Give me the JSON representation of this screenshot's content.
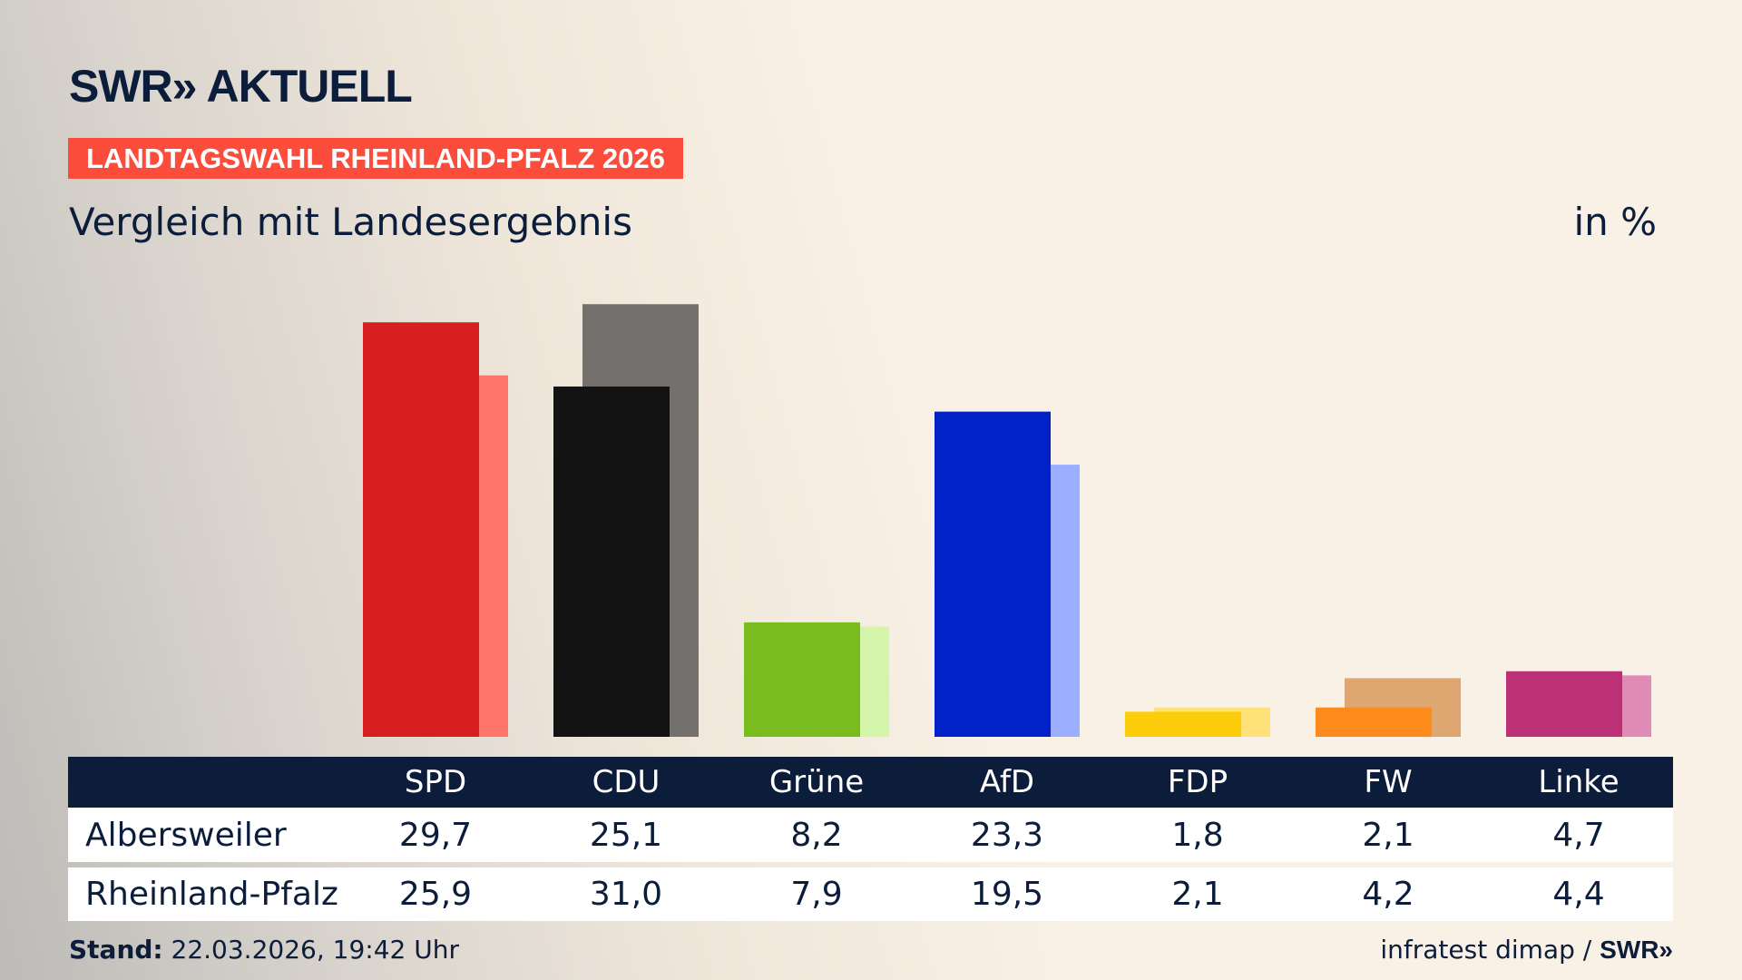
{
  "header": {
    "logo": "SWR» AKTUELL",
    "banner": "LANDTAGSWAHL RHEINLAND-PFALZ 2026",
    "subtitle": "Vergleich mit Landesergebnis",
    "unit": "in %"
  },
  "chart_data": {
    "type": "bar",
    "categories": [
      "SPD",
      "CDU",
      "Grüne",
      "AfD",
      "FDP",
      "FW",
      "Linke"
    ],
    "series": [
      {
        "name": "Albersweiler",
        "values": [
          29.7,
          25.1,
          8.2,
          23.3,
          1.8,
          2.1,
          4.7
        ],
        "colors": [
          "#d81f1f",
          "#131313",
          "#78bc1e",
          "#0221c8",
          "#fdcd0b",
          "#fd8b1b",
          "#bc3076"
        ]
      },
      {
        "name": "Rheinland-Pfalz",
        "values": [
          25.9,
          31.0,
          7.9,
          19.5,
          2.1,
          4.2,
          4.4
        ],
        "colors": [
          "#ff746b",
          "#74706e",
          "#d5f5aa",
          "#9caeff",
          "#ffe27a",
          "#dea772",
          "#e08ab6"
        ]
      }
    ],
    "ylim": [
      0,
      31.0
    ]
  },
  "table": {
    "headers": [
      "SPD",
      "CDU",
      "Grüne",
      "AfD",
      "FDP",
      "FW",
      "Linke"
    ],
    "rows": [
      {
        "label": "Albersweiler",
        "values": [
          "29,7",
          "25,1",
          "8,2",
          "23,3",
          "1,8",
          "2,1",
          "4,7"
        ]
      },
      {
        "label": "Rheinland-Pfalz",
        "values": [
          "25,9",
          "31,0",
          "7,9",
          "19,5",
          "2,1",
          "4,2",
          "4,4"
        ]
      }
    ]
  },
  "footer": {
    "stand_label": "Stand:",
    "stand_value": " 22.03.2026, 19:42 Uhr",
    "source": "infratest dimap / ",
    "source_logo": "SWR»"
  }
}
